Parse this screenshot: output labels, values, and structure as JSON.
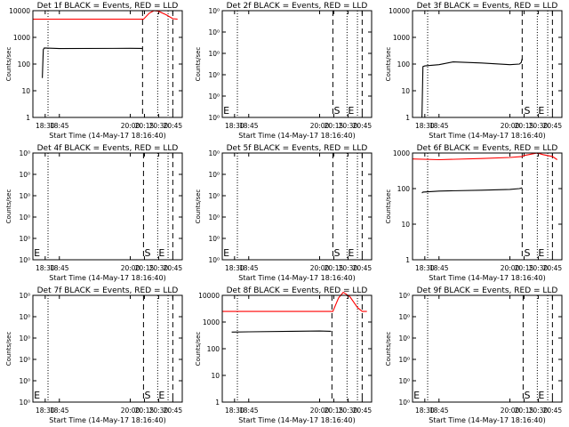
{
  "chart_data": [
    {
      "type": "line",
      "title": "Det 1f BLACK = Events, RED = LLD",
      "xlabel": "Start Time (14-May-17 18:16:40)",
      "ylabel": "Counts/sec",
      "yscale": "log",
      "ylim": [
        1,
        10000
      ],
      "ytick_labels": [
        "1",
        "10",
        "100",
        "1000",
        "10000"
      ],
      "xlim": [
        "18:17",
        "20:55"
      ],
      "xtick_labels": [
        "18:30",
        "18:45",
        "20:00",
        "20:15",
        "20:30",
        "20:45"
      ],
      "vlines": {
        "dotted": [
          "18:33",
          "20:29",
          "20:40"
        ],
        "dashed": [
          "20:13",
          "20:45"
        ]
      },
      "markers": [],
      "series": [
        {
          "color": "#000000",
          "points": [
            [
              "18:27",
              30
            ],
            [
              "18:28",
              350
            ],
            [
              "18:29",
              400
            ],
            [
              "18:45",
              380
            ],
            [
              "20:00",
              390
            ],
            [
              "20:12",
              385
            ],
            [
              "20:13",
              370
            ]
          ]
        },
        {
          "color": "#ff0000",
          "points": [
            [
              "18:17",
              4800
            ],
            [
              "19:00",
              4800
            ],
            [
              "20:14",
              4800
            ],
            [
              "20:20",
              8000
            ],
            [
              "20:25",
              10000
            ],
            [
              "20:30",
              9500
            ],
            [
              "20:38",
              7000
            ],
            [
              "20:45",
              5000
            ],
            [
              "20:50",
              4800
            ]
          ]
        }
      ]
    },
    {
      "type": "line",
      "title": "Det 2f BLACK = Events, RED = LLD",
      "xlabel": "Start Time (14-May-17 18:16:40)",
      "ylabel": "Counts/sec",
      "yscale": "log",
      "ylim": [
        1,
        10
      ],
      "ytick_labels": [
        "10⁰",
        "10⁰",
        "10⁰",
        "10⁰",
        "10⁰",
        "10⁰"
      ],
      "xlim": [
        "18:17",
        "20:55"
      ],
      "xtick_labels": [
        "18:30",
        "18:45",
        "20:00",
        "20:15",
        "20:30",
        "20:45"
      ],
      "vlines": {
        "dotted": [
          "18:33",
          "20:29",
          "20:40"
        ],
        "dashed": [
          "20:14",
          "20:45"
        ]
      },
      "markers": [
        {
          "text": "E",
          "x": "18:18"
        },
        {
          "text": "S",
          "x": "20:15"
        },
        {
          "text": "E",
          "x": "20:30"
        }
      ],
      "series": []
    },
    {
      "type": "line",
      "title": "Det 3f BLACK = Events, RED = LLD",
      "xlabel": "Start Time (14-May-17 18:16:40)",
      "ylabel": "Counts/sec",
      "yscale": "log",
      "ylim": [
        1,
        10000
      ],
      "ytick_labels": [
        "1",
        "10",
        "100",
        "1000",
        "10000"
      ],
      "xlim": [
        "18:17",
        "20:55"
      ],
      "xtick_labels": [
        "18:30",
        "18:45",
        "20:00",
        "20:15",
        "20:30",
        "20:45"
      ],
      "vlines": {
        "dotted": [
          "18:33",
          "20:29",
          "20:40"
        ],
        "dashed": [
          "20:13",
          "20:45"
        ]
      },
      "markers": [
        {
          "text": "S",
          "x": "20:15"
        },
        {
          "text": "E",
          "x": "20:30"
        }
      ],
      "series": [
        {
          "color": "#000000",
          "points": [
            [
              "18:27",
              1
            ],
            [
              "18:28",
              80
            ],
            [
              "18:30",
              85
            ],
            [
              "18:45",
              95
            ],
            [
              "19:00",
              120
            ],
            [
              "19:30",
              110
            ],
            [
              "20:00",
              95
            ],
            [
              "20:10",
              100
            ],
            [
              "20:12",
              115
            ],
            [
              "20:13",
              160
            ]
          ]
        }
      ]
    },
    {
      "type": "line",
      "title": "Det 4f BLACK = Events, RED = LLD",
      "xlabel": "Start Time (14-May-17 18:16:40)",
      "ylabel": "Counts/sec",
      "yscale": "log",
      "ylim": [
        1,
        10
      ],
      "ytick_labels": [
        "10⁰",
        "10⁰",
        "10⁰",
        "10⁰",
        "10⁰",
        "10⁰"
      ],
      "xlim": [
        "18:17",
        "20:55"
      ],
      "xtick_labels": [
        "18:30",
        "18:45",
        "20:00",
        "20:15",
        "20:30",
        "20:45"
      ],
      "vlines": {
        "dotted": [
          "18:33",
          "20:29",
          "20:40"
        ],
        "dashed": [
          "20:14",
          "20:45"
        ]
      },
      "markers": [
        {
          "text": "E",
          "x": "18:18"
        },
        {
          "text": "S",
          "x": "20:15"
        },
        {
          "text": "E",
          "x": "20:30"
        }
      ],
      "series": []
    },
    {
      "type": "line",
      "title": "Det 5f BLACK = Events, RED = LLD",
      "xlabel": "Start Time (14-May-17 18:16:40)",
      "ylabel": "Counts/sec",
      "yscale": "log",
      "ylim": [
        1,
        10
      ],
      "ytick_labels": [
        "10⁰",
        "10⁰",
        "10⁰",
        "10⁰",
        "10⁰",
        "10⁰"
      ],
      "xlim": [
        "18:17",
        "20:55"
      ],
      "xtick_labels": [
        "18:30",
        "18:45",
        "20:00",
        "20:15",
        "20:30",
        "20:45"
      ],
      "vlines": {
        "dotted": [
          "18:33",
          "20:29",
          "20:40"
        ],
        "dashed": [
          "20:14",
          "20:45"
        ]
      },
      "markers": [
        {
          "text": "E",
          "x": "18:18"
        },
        {
          "text": "S",
          "x": "20:15"
        },
        {
          "text": "E",
          "x": "20:30"
        }
      ],
      "series": []
    },
    {
      "type": "line",
      "title": "Det 6f BLACK = Events, RED = LLD",
      "xlabel": "Start Time (14-May-17 18:16:40)",
      "ylabel": "Counts/sec",
      "yscale": "log",
      "ylim": [
        1,
        1000
      ],
      "ytick_labels": [
        "1",
        "10",
        "100",
        "1000"
      ],
      "xlim": [
        "18:17",
        "20:55"
      ],
      "xtick_labels": [
        "18:30",
        "18:45",
        "20:00",
        "20:15",
        "20:30",
        "20:45"
      ],
      "vlines": {
        "dotted": [
          "18:33",
          "20:29",
          "20:40"
        ],
        "dashed": [
          "20:13",
          "20:45"
        ]
      },
      "markers": [
        {
          "text": "S",
          "x": "20:15"
        },
        {
          "text": "E",
          "x": "20:30"
        }
      ],
      "series": [
        {
          "color": "#000000",
          "points": [
            [
              "18:27",
              75
            ],
            [
              "18:28",
              80
            ],
            [
              "18:45",
              85
            ],
            [
              "19:30",
              90
            ],
            [
              "20:00",
              95
            ],
            [
              "20:10",
              100
            ],
            [
              "20:13",
              105
            ]
          ]
        },
        {
          "color": "#ff0000",
          "points": [
            [
              "18:17",
              680
            ],
            [
              "18:45",
              650
            ],
            [
              "19:30",
              700
            ],
            [
              "20:00",
              750
            ],
            [
              "20:13",
              800
            ],
            [
              "20:15",
              850
            ],
            [
              "20:29",
              1000
            ],
            [
              "20:35",
              900
            ],
            [
              "20:45",
              800
            ],
            [
              "20:50",
              650
            ]
          ]
        }
      ]
    },
    {
      "type": "line",
      "title": "Det 7f BLACK = Events, RED = LLD",
      "xlabel": "Start Time (14-May-17 18:16:40)",
      "ylabel": "Counts/sec",
      "yscale": "log",
      "ylim": [
        1,
        10
      ],
      "ytick_labels": [
        "10⁰",
        "10⁰",
        "10⁰",
        "10⁰",
        "10⁰",
        "10⁰"
      ],
      "xlim": [
        "18:17",
        "20:55"
      ],
      "xtick_labels": [
        "18:30",
        "18:45",
        "20:00",
        "20:15",
        "20:30",
        "20:45"
      ],
      "vlines": {
        "dotted": [
          "18:33",
          "20:29",
          "20:40"
        ],
        "dashed": [
          "20:14",
          "20:45"
        ]
      },
      "markers": [
        {
          "text": "E",
          "x": "18:18"
        },
        {
          "text": "S",
          "x": "20:15"
        },
        {
          "text": "E",
          "x": "20:30"
        }
      ],
      "series": []
    },
    {
      "type": "line",
      "title": "Det 8f BLACK = Events, RED = LLD",
      "xlabel": "Start Time (14-May-17 18:16:40)",
      "ylabel": "Counts/sec",
      "yscale": "log",
      "ylim": [
        1,
        10000
      ],
      "ytick_labels": [
        "1",
        "10",
        "100",
        "1000",
        "10000"
      ],
      "xlim": [
        "18:17",
        "20:55"
      ],
      "xtick_labels": [
        "18:30",
        "18:45",
        "20:00",
        "20:15",
        "20:30",
        "20:45"
      ],
      "vlines": {
        "dotted": [
          "18:33",
          "20:29",
          "20:40"
        ],
        "dashed": [
          "20:13",
          "20:45"
        ]
      },
      "markers": [],
      "series": [
        {
          "color": "#000000",
          "points": [
            [
              "18:27",
              420
            ],
            [
              "18:45",
              430
            ],
            [
              "19:30",
              450
            ],
            [
              "20:00",
              460
            ],
            [
              "20:12",
              450
            ]
          ]
        },
        {
          "color": "#ff0000",
          "points": [
            [
              "18:17",
              2500
            ],
            [
              "19:00",
              2500
            ],
            [
              "20:14",
              2500
            ],
            [
              "20:20",
              8000
            ],
            [
              "20:25",
              13000
            ],
            [
              "20:32",
              9000
            ],
            [
              "20:40",
              3500
            ],
            [
              "20:45",
              2500
            ],
            [
              "20:50",
              2500
            ]
          ]
        }
      ]
    },
    {
      "type": "line",
      "title": "Det 9f BLACK = Events, RED = LLD",
      "xlabel": "Start Time (14-May-17 18:16:40)",
      "ylabel": "Counts/sec",
      "yscale": "log",
      "ylim": [
        1,
        10
      ],
      "ytick_labels": [
        "10⁰",
        "10⁰",
        "10⁰",
        "10⁰",
        "10⁰",
        "10⁰"
      ],
      "xlim": [
        "18:17",
        "20:55"
      ],
      "xtick_labels": [
        "18:30",
        "18:45",
        "20:00",
        "20:15",
        "20:30",
        "20:45"
      ],
      "vlines": {
        "dotted": [
          "18:33",
          "20:29",
          "20:40"
        ],
        "dashed": [
          "20:14",
          "20:45"
        ]
      },
      "markers": [
        {
          "text": "E",
          "x": "18:18"
        },
        {
          "text": "S",
          "x": "20:15"
        },
        {
          "text": "E",
          "x": "20:30"
        }
      ],
      "series": []
    }
  ]
}
